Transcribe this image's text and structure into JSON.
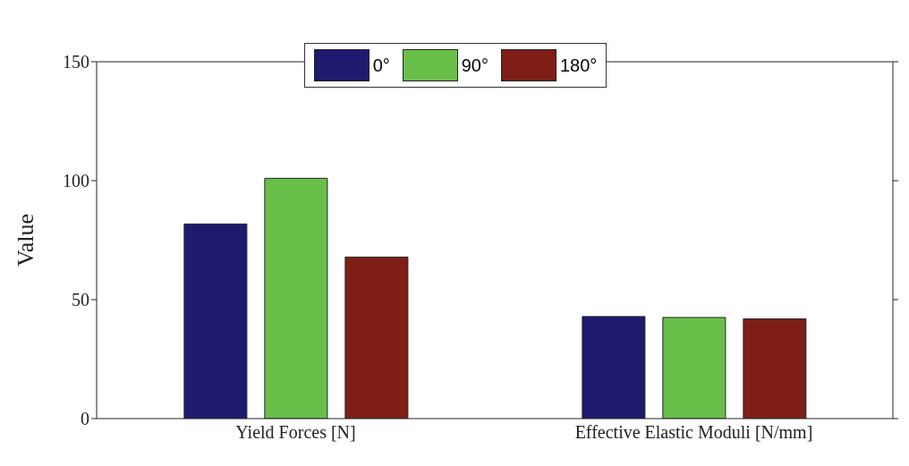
{
  "chart_data": {
    "type": "bar",
    "ylabel": "Value",
    "categories": [
      "Yield Forces [N]",
      "Effective Elastic Moduli [N/mm]"
    ],
    "series": [
      {
        "name": "0°",
        "color": "#1e1a6e",
        "values": [
          81.8,
          42.9
        ]
      },
      {
        "name": "90°",
        "color": "#6abf4b",
        "values": [
          101,
          42.5
        ]
      },
      {
        "name": "180°",
        "color": "#7f1e16",
        "values": [
          67.9,
          41.9
        ]
      }
    ],
    "ylim": [
      0,
      150
    ],
    "yticks": [
      0,
      50,
      100,
      150
    ],
    "legend": "top"
  }
}
